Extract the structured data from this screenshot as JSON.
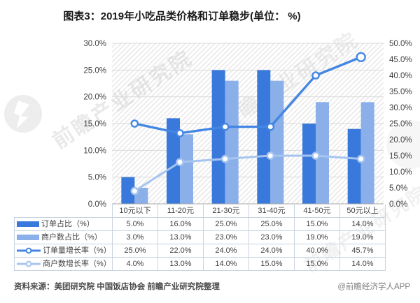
{
  "title": "图表3：2019年小吃品类价格和订单稳步(单位： %)",
  "watermark": {
    "brand": "前瞻产业研究院"
  },
  "footer": {
    "source": "资料来源：美团研究院 中国饭店协会 前瞻产业研究院整理",
    "credit": "@前瞻经济学人APP"
  },
  "chart_data": {
    "type": "bar",
    "subtype": "combo-bar-line-dual-axis",
    "title": "图表3：2019年小吃品类价格和订单稳步(单位： %)",
    "categories": [
      "10元以下",
      "11-20元",
      "21-30元",
      "31-40元",
      "41-50元",
      "50元以上"
    ],
    "series": [
      {
        "name": "订单占比（%）",
        "type": "bar",
        "axis": "left",
        "color": "#3a79dc",
        "values": [
          5.0,
          16.0,
          25.0,
          25.0,
          15.0,
          14.0
        ],
        "labels": [
          "5.0%",
          "16.0%",
          "25.0%",
          "25.0%",
          "15.0%",
          "14.0%"
        ]
      },
      {
        "name": "商户数占比（%）",
        "type": "bar",
        "axis": "left",
        "color": "#8bafe9",
        "values": [
          3.0,
          13.0,
          23.0,
          23.0,
          19.0,
          19.0
        ],
        "labels": [
          "3.0%",
          "13.0%",
          "23.0%",
          "23.0%",
          "19.0%",
          "19.0%"
        ]
      },
      {
        "name": "订单量增长率（%）",
        "type": "line",
        "axis": "right",
        "color": "#4486e3",
        "values": [
          25.0,
          22.0,
          24.0,
          24.0,
          40.0,
          45.7
        ],
        "labels": [
          "25.0%",
          "22.0%",
          "24.0%",
          "24.0%",
          "40.0%",
          "45.7%"
        ]
      },
      {
        "name": "商户数增长率（%）",
        "type": "line",
        "axis": "right",
        "color": "#a6c4ef",
        "values": [
          4.0,
          13.0,
          14.0,
          15.0,
          15.0,
          14.0
        ],
        "labels": [
          "4.0%",
          "13.0%",
          "14.0%",
          "15.0%",
          "15.0%",
          "14.0%"
        ]
      }
    ],
    "left_axis": {
      "min": 0,
      "max": 30,
      "step": 5,
      "tick_labels": [
        "0.0%",
        "5.0%",
        "10.0%",
        "15.0%",
        "20.0%",
        "25.0%",
        "30.0%"
      ]
    },
    "right_axis": {
      "min": 0,
      "max": 50,
      "step": 5,
      "tick_labels": [
        "0.0%",
        "5.0%",
        "10.0%",
        "15.0%",
        "20.0%",
        "25.0%",
        "30.0%",
        "35.0%",
        "40.0%",
        "45.0%",
        "50.0%"
      ]
    },
    "grid": true,
    "legend_position": "data-table-left"
  }
}
